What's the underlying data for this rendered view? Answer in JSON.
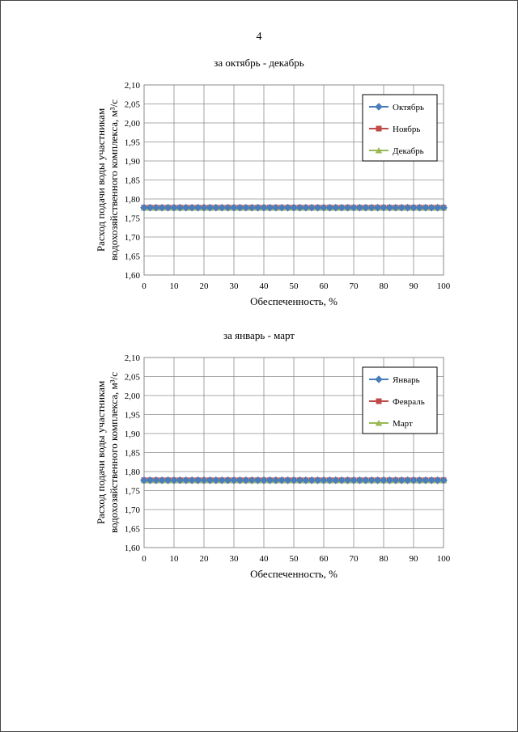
{
  "page": {
    "number": "4"
  },
  "chart_data": [
    {
      "type": "line",
      "title": "за октябрь - декабрь",
      "xlabel": "Обеспеченность, %",
      "ylabel_line1": "Расход подачи воды участникам",
      "ylabel_line2": "водохозяйственного комплекса, м³/с",
      "xlim": [
        0,
        100
      ],
      "ylim": [
        1.6,
        2.1
      ],
      "x_ticks": [
        "0",
        "10",
        "20",
        "30",
        "40",
        "50",
        "60",
        "70",
        "80",
        "90",
        "100"
      ],
      "y_ticks": [
        "1,60",
        "1,65",
        "1,70",
        "1,75",
        "1,80",
        "1,85",
        "1,90",
        "1,95",
        "2,00",
        "2,05",
        "2,10"
      ],
      "grid": true,
      "legend_position": "top-right",
      "x": [
        0,
        2,
        4,
        6,
        8,
        10,
        12,
        14,
        16,
        18,
        20,
        22,
        24,
        26,
        28,
        30,
        32,
        34,
        36,
        38,
        40,
        42,
        44,
        46,
        48,
        50,
        52,
        54,
        56,
        58,
        60,
        62,
        64,
        66,
        68,
        70,
        72,
        74,
        76,
        78,
        80,
        82,
        84,
        86,
        88,
        90,
        92,
        94,
        96,
        98,
        100
      ],
      "series": [
        {
          "name": "Октябрь",
          "value": 1.777,
          "color": "#4a7ebb",
          "marker": "diamond"
        },
        {
          "name": "Ноябрь",
          "value": 1.777,
          "color": "#be4b48",
          "marker": "square"
        },
        {
          "name": "Декабрь",
          "value": 1.777,
          "color": "#98b954",
          "marker": "triangle"
        }
      ]
    },
    {
      "type": "line",
      "title": "за январь - март",
      "xlabel": "Обеспеченность, %",
      "ylabel_line1": "Расход подачи воды участникам",
      "ylabel_line2": "водохозяйственного комплекса, м³/с",
      "xlim": [
        0,
        100
      ],
      "ylim": [
        1.6,
        2.1
      ],
      "x_ticks": [
        "0",
        "10",
        "20",
        "30",
        "40",
        "50",
        "60",
        "70",
        "80",
        "90",
        "100"
      ],
      "y_ticks": [
        "1,60",
        "1,65",
        "1,70",
        "1,75",
        "1,80",
        "1,85",
        "1,90",
        "1,95",
        "2,00",
        "2,05",
        "2,10"
      ],
      "grid": true,
      "legend_position": "top-right",
      "x": [
        0,
        2,
        4,
        6,
        8,
        10,
        12,
        14,
        16,
        18,
        20,
        22,
        24,
        26,
        28,
        30,
        32,
        34,
        36,
        38,
        40,
        42,
        44,
        46,
        48,
        50,
        52,
        54,
        56,
        58,
        60,
        62,
        64,
        66,
        68,
        70,
        72,
        74,
        76,
        78,
        80,
        82,
        84,
        86,
        88,
        90,
        92,
        94,
        96,
        98,
        100
      ],
      "series": [
        {
          "name": "Январь",
          "value": 1.777,
          "color": "#4a7ebb",
          "marker": "diamond"
        },
        {
          "name": "Февраль",
          "value": 1.777,
          "color": "#be4b48",
          "marker": "square"
        },
        {
          "name": "Март",
          "value": 1.777,
          "color": "#98b954",
          "marker": "triangle"
        }
      ]
    }
  ]
}
